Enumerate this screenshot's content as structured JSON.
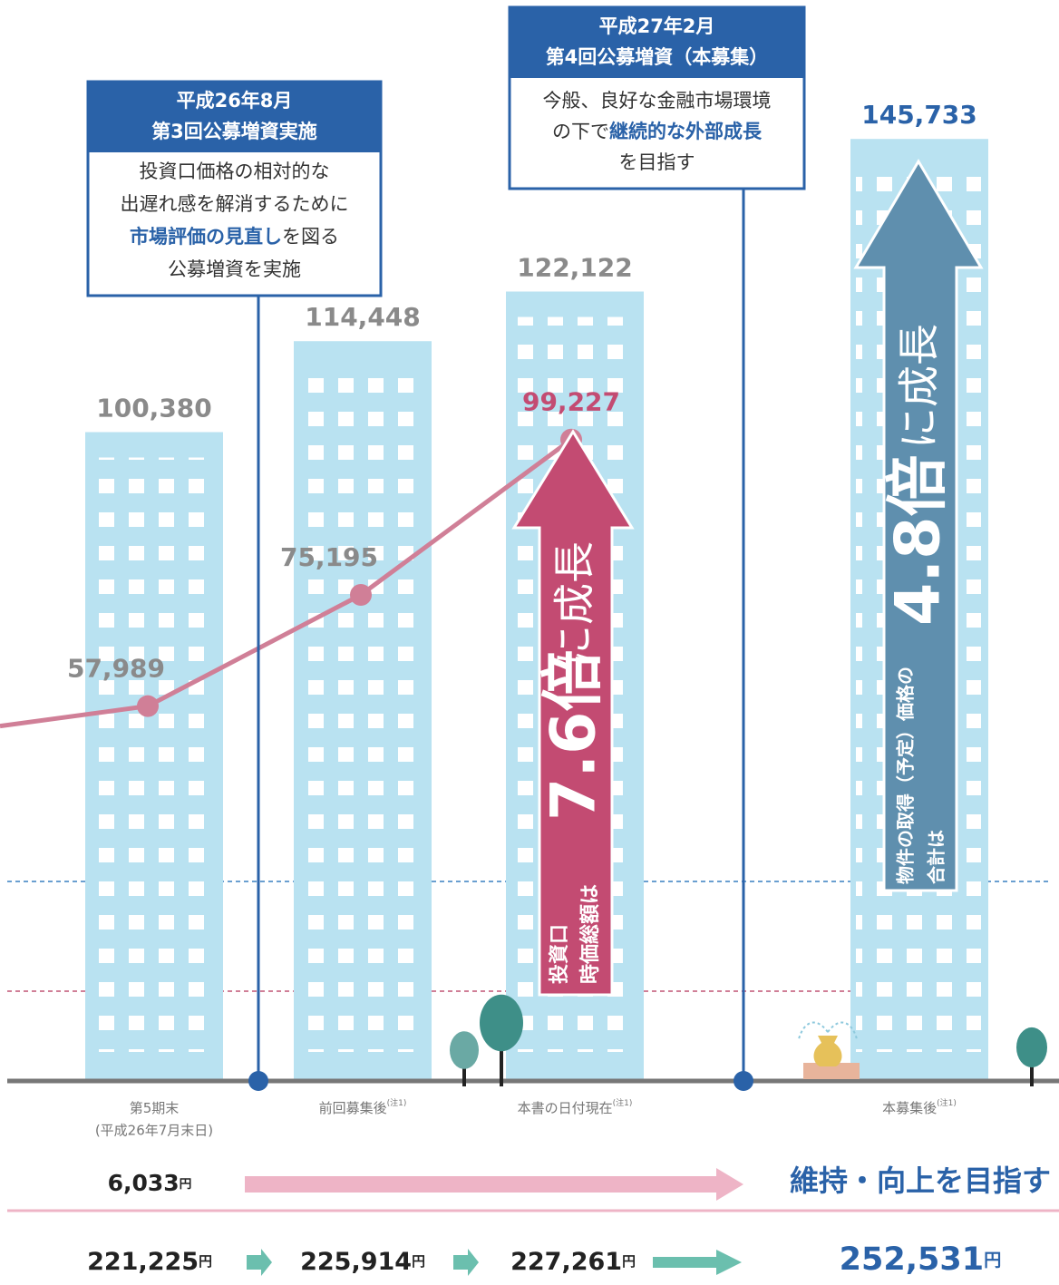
{
  "chart_data": {
    "type": "bar",
    "ylim": [
      0,
      160000
    ],
    "categories": [
      {
        "label": "第5期末",
        "sub": "(平成26年7月末日)"
      },
      {
        "label": "前回募集後",
        "note": "(注1)"
      },
      {
        "label": "本書の日付現在",
        "note": "(注1)"
      },
      {
        "label": "本募集後",
        "note": "(注1)"
      }
    ],
    "series": [
      {
        "type": "bar",
        "color": "#b9e2f1",
        "values": [
          100380,
          114448,
          122122,
          145733
        ],
        "value_labels": [
          "100,380",
          "114,448",
          "122,122",
          "145,733"
        ]
      },
      {
        "type": "line",
        "color": "#d07f97",
        "values": [
          57989,
          75195,
          99227,
          null
        ],
        "value_labels": [
          "57,989",
          "75,195",
          "99,227",
          null
        ]
      }
    ]
  },
  "callouts": [
    {
      "header": [
        "平成26年8月",
        "第3回公募増資実施"
      ],
      "body": [
        [
          {
            "text": "投資口価格の相対的な"
          }
        ],
        [
          {
            "text": "出遅れ感を解消するために"
          }
        ],
        [
          {
            "text": "市場評価の見直し",
            "highlight": true
          },
          {
            "text": "を図る"
          }
        ],
        [
          {
            "text": "公募増資を実施"
          }
        ]
      ]
    },
    {
      "header": [
        "平成27年2月",
        "第4回公募増資（本募集）"
      ],
      "body": [
        [
          {
            "text": "今般、良好な金融市場環境"
          }
        ],
        [
          {
            "text": "の下で"
          },
          {
            "text": "継続的な外部成長",
            "highlight": true
          }
        ],
        [
          {
            "text": "を目指す"
          }
        ]
      ]
    }
  ],
  "growth_arrows": [
    {
      "subject": [
        "投資口",
        "時価総額は"
      ],
      "multiple": "7.6倍",
      "tail": "に成長"
    },
    {
      "subject": [
        "物件の取得（予定）価格の",
        "合計は"
      ],
      "multiple": "4.8倍",
      "tail": "に成長"
    }
  ],
  "rows": [
    {
      "start": {
        "amount": "6,033",
        "unit": "円"
      },
      "goal": "維持・向上を目指す"
    },
    {
      "steps": [
        {
          "amount": "221,225",
          "unit": "円"
        },
        {
          "amount": "225,914",
          "unit": "円"
        },
        {
          "amount": "227,261",
          "unit": "円"
        }
      ],
      "goal": {
        "amount": "252,531",
        "unit": "円"
      }
    }
  ]
}
